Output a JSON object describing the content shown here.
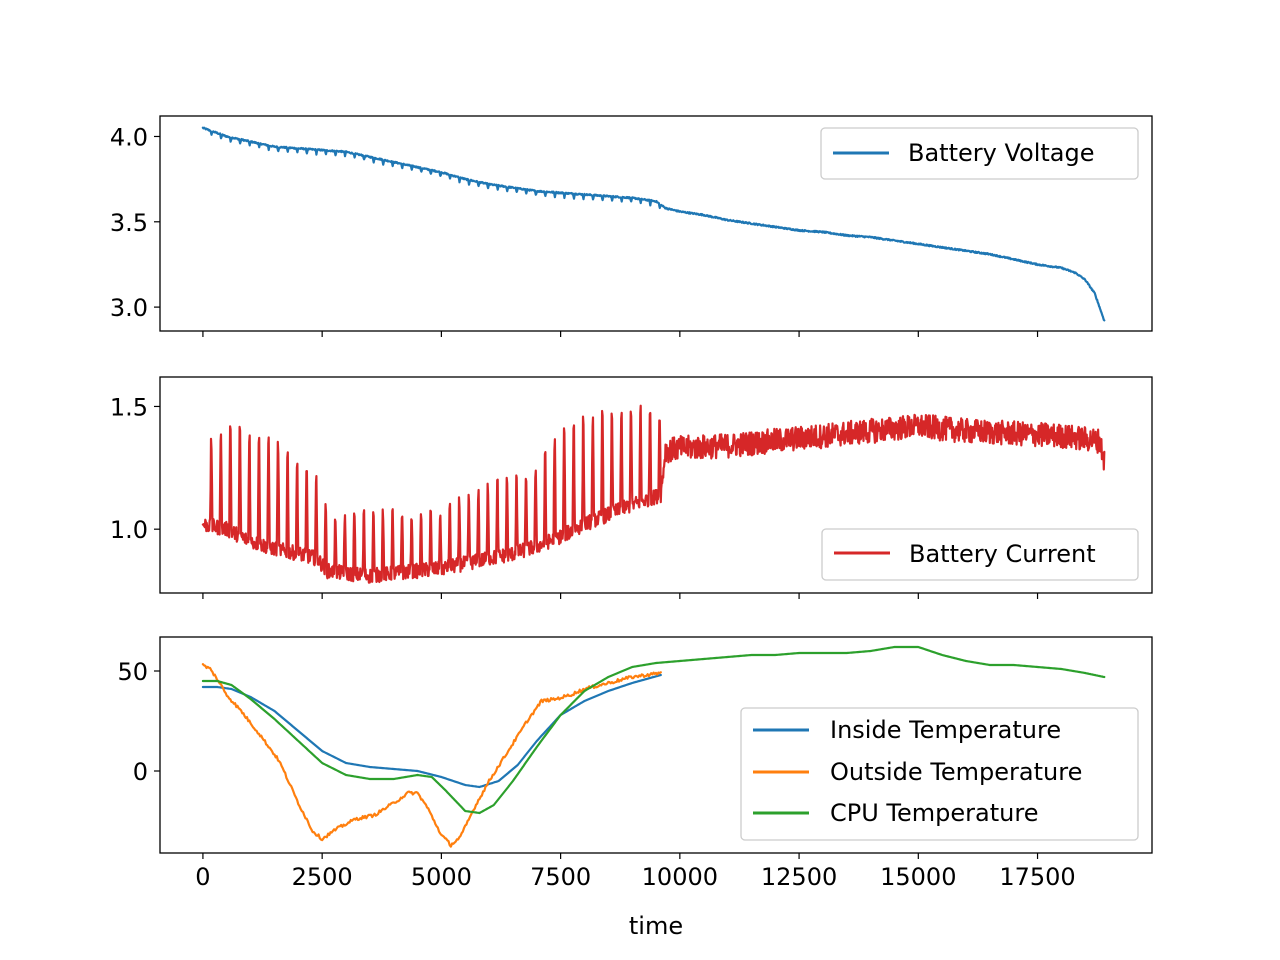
{
  "chart_data": [
    {
      "type": "line",
      "title": "",
      "xlabel": "",
      "ylabel": "",
      "xlim": [
        -900,
        19900
      ],
      "ylim": [
        2.86,
        4.12
      ],
      "yticks": [
        3.0,
        3.5,
        4.0
      ],
      "yticklabels": [
        "3.0",
        "3.5",
        "4.0"
      ],
      "xtick_labels_visible": false,
      "legend_position": "upper right",
      "grid": false,
      "series": [
        {
          "name": "Battery Voltage",
          "color": "#1f77b4",
          "x": [
            0,
            500,
            1000,
            1500,
            2000,
            2500,
            3000,
            3500,
            4000,
            4500,
            5000,
            5500,
            6000,
            6500,
            7000,
            7500,
            8000,
            8500,
            9000,
            9500,
            9700,
            10000,
            10500,
            11000,
            11500,
            12000,
            12500,
            13000,
            13500,
            14000,
            14500,
            15000,
            15500,
            16000,
            16500,
            17000,
            17500,
            18000,
            18300,
            18500,
            18700,
            18800,
            18900
          ],
          "y": [
            4.05,
            4.0,
            3.97,
            3.94,
            3.93,
            3.92,
            3.91,
            3.88,
            3.85,
            3.82,
            3.79,
            3.75,
            3.72,
            3.7,
            3.68,
            3.67,
            3.66,
            3.65,
            3.64,
            3.62,
            3.58,
            3.56,
            3.54,
            3.51,
            3.49,
            3.47,
            3.45,
            3.44,
            3.42,
            3.41,
            3.39,
            3.37,
            3.35,
            3.33,
            3.31,
            3.28,
            3.25,
            3.23,
            3.2,
            3.16,
            3.08,
            3.0,
            2.92
          ],
          "ripple_amplitude": 0.025,
          "ripple_period": 200,
          "ripple_until_x": 9700
        }
      ]
    },
    {
      "type": "line",
      "title": "",
      "xlabel": "",
      "ylabel": "",
      "xlim": [
        -900,
        19900
      ],
      "ylim": [
        0.74,
        1.62
      ],
      "yticks": [
        1.0,
        1.5
      ],
      "yticklabels": [
        "1.0",
        "1.5"
      ],
      "xtick_labels_visible": false,
      "legend_position": "lower right",
      "grid": false,
      "series": [
        {
          "name": "Battery Current",
          "color": "#d62728",
          "base_x": [
            0,
            500,
            1000,
            1500,
            2000,
            2400,
            2600,
            3000,
            3500,
            4000,
            4500,
            5000,
            5500,
            6000,
            6500,
            7000,
            7500,
            8000,
            8500,
            9000,
            9600,
            9700,
            10000,
            11000,
            12000,
            13000,
            14000,
            15000,
            16000,
            17000,
            18000,
            18800,
            18900
          ],
          "base_y": [
            1.02,
            1.0,
            0.95,
            0.92,
            0.9,
            0.88,
            0.83,
            0.82,
            0.81,
            0.82,
            0.83,
            0.84,
            0.86,
            0.88,
            0.9,
            0.93,
            0.97,
            1.02,
            1.06,
            1.1,
            1.14,
            1.32,
            1.33,
            1.34,
            1.36,
            1.38,
            1.4,
            1.42,
            1.4,
            1.39,
            1.38,
            1.36,
            1.28
          ],
          "peak_x": [
            0,
            500,
            1000,
            1500,
            2000,
            2400,
            2600,
            3000,
            3500,
            4000,
            4500,
            5000,
            5500,
            6000,
            6500,
            7000,
            7500,
            8000,
            8500,
            9000,
            9600
          ],
          "peak_y": [
            1.37,
            1.52,
            1.48,
            1.46,
            1.34,
            1.26,
            1.12,
            1.1,
            1.12,
            1.13,
            1.1,
            1.12,
            1.18,
            1.24,
            1.27,
            1.3,
            1.5,
            1.54,
            1.57,
            1.58,
            1.55
          ],
          "spike_period": 200,
          "spike_until_x": 9700,
          "noise_amplitude_after": 0.05
        }
      ]
    },
    {
      "type": "line",
      "title": "",
      "xlabel": "time",
      "ylabel": "",
      "xlim": [
        -900,
        19900
      ],
      "ylim": [
        -41,
        67
      ],
      "yticks": [
        0,
        50
      ],
      "yticklabels": [
        "0",
        "50"
      ],
      "xticks": [
        0,
        2500,
        5000,
        7500,
        10000,
        12500,
        15000,
        17500
      ],
      "xticklabels": [
        "0",
        "2500",
        "5000",
        "7500",
        "10000",
        "12500",
        "15000",
        "17500"
      ],
      "legend_position": "lower right",
      "grid": false,
      "series": [
        {
          "name": "Inside Temperature",
          "color": "#1f77b4",
          "x": [
            0,
            300,
            600,
            1000,
            1500,
            2000,
            2500,
            3000,
            3500,
            4000,
            4500,
            5000,
            5500,
            5800,
            6200,
            6600,
            7000,
            7500,
            8000,
            8500,
            9000,
            9600
          ],
          "y": [
            42,
            42,
            41,
            37,
            30,
            20,
            10,
            4,
            2,
            1,
            0,
            -3,
            -7,
            -8,
            -5,
            3,
            15,
            28,
            35,
            40,
            44,
            48
          ]
        },
        {
          "name": "Outside Temperature",
          "color": "#ff7f0e",
          "x": [
            0,
            150,
            300,
            500,
            800,
            1200,
            1600,
            2000,
            2300,
            2500,
            2800,
            3200,
            3600,
            4000,
            4300,
            4500,
            4700,
            5000,
            5200,
            5400,
            5700,
            6000,
            6400,
            6800,
            7100,
            7400,
            7700,
            8000,
            8500,
            9000,
            9600
          ],
          "y": [
            53,
            51,
            46,
            38,
            30,
            18,
            5,
            -16,
            -30,
            -34,
            -29,
            -24,
            -22,
            -16,
            -11,
            -11,
            -18,
            -32,
            -37,
            -33,
            -18,
            -5,
            10,
            25,
            35,
            36,
            38,
            41,
            44,
            47,
            49
          ]
        },
        {
          "name": "CPU Temperature",
          "color": "#2ca02c",
          "x": [
            0,
            300,
            600,
            1000,
            1500,
            2000,
            2500,
            3000,
            3500,
            4000,
            4500,
            4800,
            5100,
            5500,
            5800,
            6100,
            6500,
            7000,
            7500,
            8000,
            8500,
            9000,
            9500,
            10000,
            10500,
            11000,
            11500,
            12000,
            12500,
            13000,
            13500,
            14000,
            14500,
            15000,
            15500,
            16000,
            16500,
            17000,
            17500,
            18000,
            18500,
            18900
          ],
          "y": [
            45,
            45,
            43,
            36,
            26,
            15,
            4,
            -2,
            -4,
            -4,
            -2,
            -3,
            -10,
            -20,
            -21,
            -17,
            -5,
            12,
            28,
            40,
            47,
            52,
            54,
            55,
            56,
            57,
            58,
            58,
            59,
            59,
            59,
            60,
            62,
            62,
            58,
            55,
            53,
            53,
            52,
            51,
            49,
            47
          ]
        }
      ]
    }
  ]
}
